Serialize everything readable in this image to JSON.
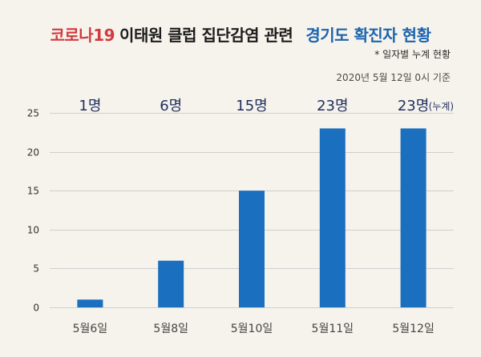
{
  "chart_data": {
    "type": "bar",
    "title_segments": [
      {
        "text": "코로나19",
        "color": "#d23a3f"
      },
      {
        "text": "이태원 클럽 집단감염 관련",
        "color": "#1c1c1c"
      },
      {
        "text": "경기도 확진자 현황",
        "color": "#1a64b0"
      }
    ],
    "subtitle": "* 일자별 누계 현황",
    "note": "2020년 5월 12일 0시 기준",
    "categories": [
      "5월6일",
      "5월8일",
      "5월10일",
      "5월11일",
      "5월12일"
    ],
    "values": [
      1,
      6,
      15,
      23,
      23
    ],
    "data_labels": [
      "1명",
      "6명",
      "15명",
      "23명",
      "23명"
    ],
    "annotation": "(누계)",
    "xlabel": "",
    "ylabel": "",
    "ylim": [
      0,
      25
    ],
    "yticks": [
      0,
      5,
      10,
      15,
      20,
      25
    ],
    "grid": true,
    "colors": {
      "bar": "#1b6fbf",
      "data_label": "#1f2f5f",
      "grid": "#cfcfcf",
      "tick_label": "#333333",
      "category_label": "#444444",
      "background": "#f6f3ec"
    }
  }
}
